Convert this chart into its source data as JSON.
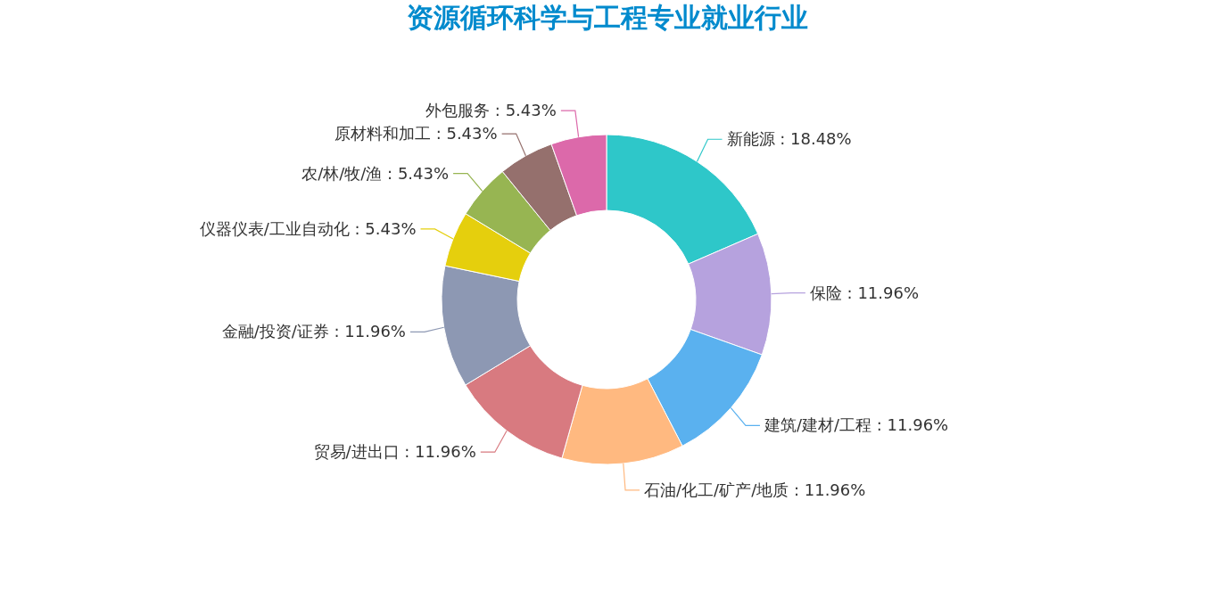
{
  "chart_data": {
    "type": "donut",
    "title": "资源循环科学与工程专业就业行业",
    "categories": [
      "新能源",
      "保险",
      "建筑/建材/工程",
      "石油/化工/矿产/地质",
      "贸易/进出口",
      "金融/投资/证券",
      "仪器仪表/工业自动化",
      "农/林/牧/渔",
      "原材料和加工",
      "外包服务"
    ],
    "values": [
      18.48,
      11.96,
      11.96,
      11.96,
      11.96,
      11.96,
      5.43,
      5.43,
      5.43,
      5.43
    ],
    "value_labels": [
      "18.48%",
      "11.96%",
      "11.96%",
      "11.96%",
      "11.96%",
      "11.96%",
      "5.43%",
      "5.43%",
      "5.43%",
      "5.43%"
    ],
    "colors": [
      "#2ec7c9",
      "#b6a2de",
      "#5ab1ef",
      "#ffb980",
      "#d87a80",
      "#8d98b3",
      "#e5cf0d",
      "#97b552",
      "#95706d",
      "#dc69aa"
    ]
  }
}
